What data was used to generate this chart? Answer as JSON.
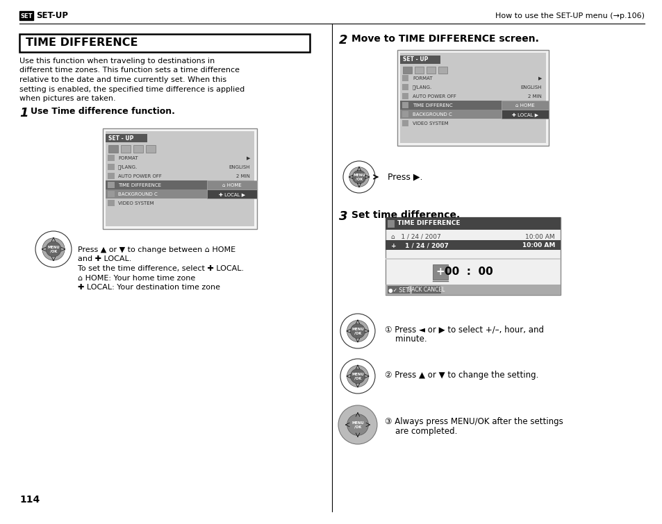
{
  "page_number": "114",
  "header_left_box": "SET",
  "header_left_text": "SET-UP",
  "header_right": "How to use the SET-UP menu (→p.106)",
  "section_title": "TIME DIFFERENCE",
  "intro_text": "Use this function when traveling to destinations in\ndifferent time zones. This function sets a time difference\nrelative to the date and time currently set. When this\nsetting is enabled, the specified time difference is applied\nwhen pictures are taken.",
  "step1_num": "1",
  "step1_text": "Use Time difference function.",
  "step2_num": "2",
  "step2_text": "Move to TIME DIFFERENCE screen.",
  "step3_num": "3",
  "step3_text": "Set time difference.",
  "press_text1_line1": "Press ▲ or ▼ to change between ⌂ HOME",
  "press_text1_line2": "and ✚ LOCAL.",
  "press_text1_line3": "To set the time difference, select ✚ LOCAL.",
  "press_text1_line4": "⌂ HOME: Your home time zone",
  "press_text1_line5": "✚ LOCAL: Your destination time zone",
  "press_text2": "Press ▶.",
  "press_text3_1a": "① Press ◄ or ▶ to select +/–, hour, and",
  "press_text3_1b": "    minute.",
  "press_text3_2": "② Press ▲ or ▼ to change the setting.",
  "press_text3_3a": "③ Always press MENU/OK after the settings",
  "press_text3_3b": "    are completed.",
  "bg_color": "#ffffff",
  "text_color": "#000000"
}
